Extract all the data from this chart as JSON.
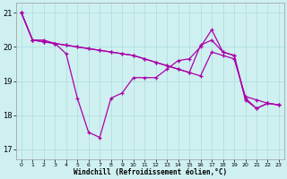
{
  "xlabel": "Windchill (Refroidissement éolien,°C)",
  "background_color": "#cff0f0",
  "grid_color": "#aadddd",
  "line_color": "#aa00aa",
  "xlim": [
    -0.5,
    23.5
  ],
  "ylim": [
    16.7,
    21.3
  ],
  "yticks": [
    17,
    18,
    19,
    20,
    21
  ],
  "xticks": [
    0,
    1,
    2,
    3,
    4,
    5,
    6,
    7,
    8,
    9,
    10,
    11,
    12,
    13,
    14,
    15,
    16,
    17,
    18,
    19,
    20,
    21,
    22,
    23
  ],
  "series": [
    [
      21.0,
      20.2,
      20.2,
      20.1,
      19.8,
      18.5,
      17.5,
      17.35,
      18.5,
      18.65,
      19.1,
      19.1,
      19.1,
      19.35,
      19.6,
      19.65,
      20.0,
      20.5,
      19.85,
      19.75,
      18.45,
      18.2,
      18.35,
      18.3
    ],
    [
      21.0,
      20.2,
      20.15,
      20.1,
      20.05,
      20.0,
      19.95,
      19.9,
      19.85,
      19.8,
      19.75,
      19.65,
      19.55,
      19.45,
      19.35,
      19.25,
      19.15,
      19.85,
      19.75,
      19.65,
      18.55,
      18.45,
      18.35,
      18.3
    ],
    [
      21.0,
      20.2,
      20.15,
      20.1,
      20.05,
      20.0,
      19.95,
      19.9,
      19.85,
      19.8,
      19.75,
      19.65,
      19.55,
      19.45,
      19.35,
      19.25,
      20.05,
      20.2,
      19.85,
      19.75,
      18.5,
      18.2,
      18.35,
      18.3
    ]
  ]
}
